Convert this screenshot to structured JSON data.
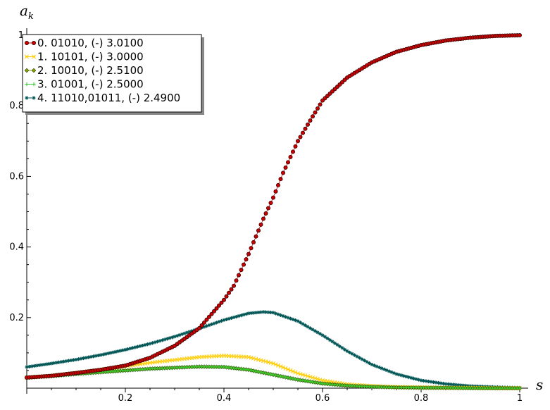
{
  "chart_data": {
    "type": "scatter",
    "xlabel": "s",
    "ylabel": "a_k",
    "ylabel_display": "a",
    "ylabel_sub": "k",
    "xlim": [
      0,
      1
    ],
    "ylim": [
      0,
      1
    ],
    "x_ticks": [
      0.2,
      0.4,
      0.6,
      0.8,
      1.0
    ],
    "x_tick_labels": [
      "0.2",
      "0.4",
      "0.6",
      "0.8",
      "1"
    ],
    "y_ticks": [
      0.2,
      0.4,
      0.6,
      0.8,
      1.0
    ],
    "y_tick_labels": [
      "0.2",
      "0.4",
      "0.6",
      "0.8",
      "1"
    ],
    "grid": false,
    "legend_position": "top-left",
    "series": [
      {
        "name": "0. 01010, (-) 3.0100",
        "color": "#cc0000",
        "marker": "circle",
        "x": [
          0.0,
          0.05,
          0.1,
          0.15,
          0.2,
          0.25,
          0.3,
          0.35,
          0.4,
          0.42,
          0.45,
          0.48,
          0.5,
          0.52,
          0.55,
          0.58,
          0.6,
          0.65,
          0.7,
          0.75,
          0.8,
          0.85,
          0.9,
          0.95,
          1.0
        ],
        "values": [
          0.03,
          0.035,
          0.043,
          0.052,
          0.064,
          0.086,
          0.12,
          0.17,
          0.25,
          0.29,
          0.38,
          0.48,
          0.54,
          0.61,
          0.7,
          0.77,
          0.815,
          0.88,
          0.923,
          0.953,
          0.972,
          0.985,
          0.993,
          0.998,
          1.0
        ]
      },
      {
        "name": "1. 10101, (-) 3.0000",
        "color": "#ffcc00",
        "marker": "x",
        "x": [
          0.0,
          0.05,
          0.1,
          0.15,
          0.2,
          0.25,
          0.3,
          0.35,
          0.4,
          0.45,
          0.5,
          0.55,
          0.6,
          0.65,
          0.7,
          0.75,
          0.8,
          0.85,
          0.9,
          0.95,
          1.0
        ],
        "values": [
          0.03,
          0.035,
          0.043,
          0.052,
          0.062,
          0.072,
          0.08,
          0.088,
          0.092,
          0.088,
          0.07,
          0.042,
          0.022,
          0.011,
          0.006,
          0.003,
          0.002,
          0.001,
          0.001,
          0.0,
          0.0
        ]
      },
      {
        "name": "2. 10010, (-) 2.5100",
        "color": "#88aa00",
        "marker": "diamond",
        "x": [
          0.0,
          0.05,
          0.1,
          0.15,
          0.2,
          0.25,
          0.3,
          0.35,
          0.4,
          0.45,
          0.5,
          0.55,
          0.6,
          0.65,
          0.7,
          0.75,
          0.8,
          0.85,
          0.9,
          0.95,
          1.0
        ],
        "values": [
          0.03,
          0.034,
          0.04,
          0.045,
          0.05,
          0.055,
          0.058,
          0.061,
          0.06,
          0.052,
          0.038,
          0.024,
          0.013,
          0.007,
          0.004,
          0.002,
          0.001,
          0.001,
          0.0,
          0.0,
          0.0
        ]
      },
      {
        "name": "3. 01001, (-) 2.5000",
        "color": "#33cc33",
        "marker": "plus",
        "x": [
          0.0,
          0.05,
          0.1,
          0.15,
          0.2,
          0.25,
          0.3,
          0.35,
          0.4,
          0.45,
          0.5,
          0.55,
          0.6,
          0.65,
          0.7,
          0.75,
          0.8,
          0.85,
          0.9,
          0.95,
          1.0
        ],
        "values": [
          0.03,
          0.034,
          0.04,
          0.045,
          0.05,
          0.055,
          0.058,
          0.061,
          0.06,
          0.052,
          0.038,
          0.024,
          0.013,
          0.007,
          0.004,
          0.002,
          0.001,
          0.001,
          0.0,
          0.0,
          0.0
        ]
      },
      {
        "name": "4. 11010,01011, (-) 2.4900",
        "color": "#005555",
        "marker": "star",
        "x": [
          0.0,
          0.05,
          0.1,
          0.15,
          0.2,
          0.25,
          0.3,
          0.35,
          0.4,
          0.45,
          0.48,
          0.5,
          0.55,
          0.6,
          0.65,
          0.7,
          0.75,
          0.8,
          0.85,
          0.9,
          0.95,
          1.0
        ],
        "values": [
          0.06,
          0.07,
          0.081,
          0.094,
          0.109,
          0.126,
          0.146,
          0.169,
          0.193,
          0.212,
          0.216,
          0.214,
          0.19,
          0.15,
          0.105,
          0.067,
          0.04,
          0.022,
          0.012,
          0.006,
          0.003,
          0.001
        ]
      }
    ]
  }
}
